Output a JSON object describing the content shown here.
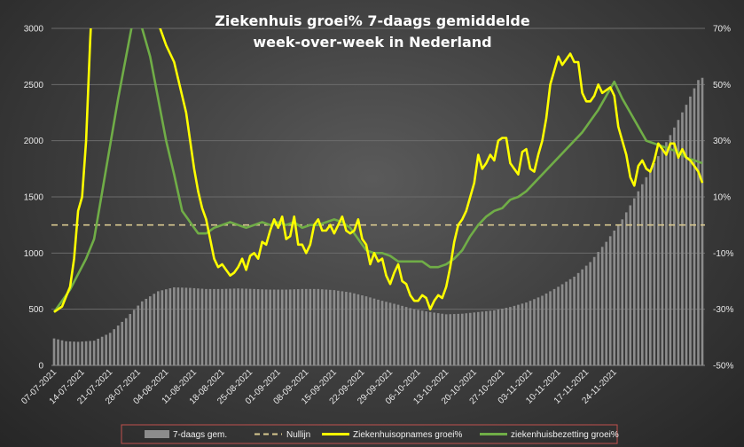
{
  "chart_data": {
    "type": "bar+line",
    "title_lines": [
      "Ziekenhuis groei% 7-daags gemiddelde",
      "week-over-week in Nederland"
    ],
    "x_tick_labels": [
      "07-07-2021",
      "14-07-2021",
      "21-07-2021",
      "28-07-2021",
      "04-08-2021",
      "11-08-2021",
      "18-08-2021",
      "25-08-2021",
      "01-09-2021",
      "08-09-2021",
      "15-09-2021",
      "22-09-2021",
      "29-09-2021",
      "06-10-2021",
      "13-10-2021",
      "20-10-2021",
      "27-10-2021",
      "03-11-2021",
      "10-11-2021",
      "17-11-2021",
      "24-11-2021"
    ],
    "y_left": {
      "min": 0,
      "max": 3000,
      "ticks": [
        "0",
        "500",
        "1000",
        "1500",
        "2000",
        "2500",
        "3000"
      ]
    },
    "y_right": {
      "min": -50,
      "max": 70,
      "ticks": [
        "-50%",
        "-30%",
        "-10%",
        "10%",
        "30%",
        "50%",
        "70%"
      ]
    },
    "reference_line": {
      "name": "Nullijn",
      "y_right": 0,
      "color": "#d8c890"
    },
    "series": [
      {
        "name": "7-daags gem.",
        "type": "bar",
        "axis": "left",
        "color": "#8c8c8c",
        "knots": [
          [
            0,
            240
          ],
          [
            3,
            215
          ],
          [
            6,
            210
          ],
          [
            10,
            220
          ],
          [
            14,
            290
          ],
          [
            18,
            420
          ],
          [
            22,
            570
          ],
          [
            26,
            660
          ],
          [
            30,
            695
          ],
          [
            34,
            690
          ],
          [
            38,
            680
          ],
          [
            42,
            680
          ],
          [
            46,
            685
          ],
          [
            50,
            680
          ],
          [
            54,
            675
          ],
          [
            58,
            675
          ],
          [
            62,
            680
          ],
          [
            66,
            680
          ],
          [
            70,
            670
          ],
          [
            74,
            650
          ],
          [
            78,
            615
          ],
          [
            82,
            575
          ],
          [
            86,
            540
          ],
          [
            90,
            500
          ],
          [
            94,
            475
          ],
          [
            98,
            455
          ],
          [
            102,
            460
          ],
          [
            106,
            475
          ],
          [
            110,
            490
          ],
          [
            114,
            520
          ],
          [
            118,
            560
          ],
          [
            122,
            620
          ],
          [
            126,
            700
          ],
          [
            130,
            790
          ],
          [
            134,
            920
          ],
          [
            138,
            1100
          ],
          [
            142,
            1300
          ],
          [
            146,
            1550
          ],
          [
            150,
            1800
          ],
          [
            154,
            2050
          ],
          [
            158,
            2320
          ],
          [
            161,
            2540
          ],
          [
            162,
            2560
          ]
        ]
      },
      {
        "name": "Ziekenhuisopnames groei%",
        "type": "line",
        "axis": "right",
        "color": "#ffff00",
        "knots": [
          [
            0,
            -31
          ],
          [
            2,
            -29
          ],
          [
            4,
            -22
          ],
          [
            5,
            -12
          ],
          [
            6,
            5
          ],
          [
            7,
            10
          ],
          [
            8,
            30
          ],
          [
            9,
            65
          ],
          [
            10,
            95
          ],
          [
            11,
            140
          ],
          [
            12,
            190
          ],
          [
            13,
            240
          ],
          [
            14,
            280
          ],
          [
            15,
            320
          ],
          [
            16,
            340
          ],
          [
            17,
            380
          ],
          [
            18,
            400
          ],
          [
            19,
            380
          ],
          [
            20,
            330
          ],
          [
            21,
            250
          ],
          [
            22,
            180
          ],
          [
            23,
            110
          ],
          [
            24,
            82
          ],
          [
            25,
            78
          ],
          [
            26,
            72
          ],
          [
            28,
            64
          ],
          [
            30,
            58
          ],
          [
            31,
            52
          ],
          [
            32,
            46
          ],
          [
            33,
            40
          ],
          [
            34,
            30
          ],
          [
            35,
            20
          ],
          [
            36,
            12
          ],
          [
            37,
            6
          ],
          [
            38,
            2
          ],
          [
            39,
            -5
          ],
          [
            40,
            -12
          ],
          [
            41,
            -15
          ],
          [
            42,
            -14
          ],
          [
            43,
            -16
          ],
          [
            44,
            -18
          ],
          [
            45,
            -17
          ],
          [
            46,
            -15
          ],
          [
            47,
            -12
          ],
          [
            48,
            -16
          ],
          [
            49,
            -11
          ],
          [
            50,
            -10
          ],
          [
            51,
            -12
          ],
          [
            52,
            -6
          ],
          [
            53,
            -7
          ],
          [
            54,
            -2
          ],
          [
            55,
            2
          ],
          [
            56,
            -1
          ],
          [
            57,
            3
          ],
          [
            58,
            -5
          ],
          [
            59,
            -4
          ],
          [
            60,
            3
          ],
          [
            61,
            -7
          ],
          [
            62,
            -7
          ],
          [
            63,
            -10
          ],
          [
            64,
            -7
          ],
          [
            65,
            0
          ],
          [
            66,
            2
          ],
          [
            67,
            -2
          ],
          [
            68,
            -2
          ],
          [
            69,
            0
          ],
          [
            70,
            -3
          ],
          [
            71,
            0
          ],
          [
            72,
            3
          ],
          [
            73,
            -2
          ],
          [
            74,
            -3
          ],
          [
            75,
            -2
          ],
          [
            76,
            2
          ],
          [
            77,
            -5
          ],
          [
            78,
            -7
          ],
          [
            79,
            -14
          ],
          [
            80,
            -10
          ],
          [
            81,
            -13
          ],
          [
            82,
            -12
          ],
          [
            83,
            -18
          ],
          [
            84,
            -21
          ],
          [
            85,
            -17
          ],
          [
            86,
            -14
          ],
          [
            87,
            -20
          ],
          [
            88,
            -21
          ],
          [
            89,
            -25
          ],
          [
            90,
            -27
          ],
          [
            91,
            -27
          ],
          [
            92,
            -25
          ],
          [
            93,
            -26
          ],
          [
            94,
            -30
          ],
          [
            95,
            -27
          ],
          [
            96,
            -25
          ],
          [
            97,
            -26
          ],
          [
            98,
            -22
          ],
          [
            99,
            -15
          ],
          [
            100,
            -6
          ],
          [
            101,
            0
          ],
          [
            102,
            2
          ],
          [
            103,
            5
          ],
          [
            104,
            10
          ],
          [
            105,
            15
          ],
          [
            106,
            25
          ],
          [
            107,
            20
          ],
          [
            108,
            22
          ],
          [
            109,
            25
          ],
          [
            110,
            23
          ],
          [
            111,
            30
          ],
          [
            112,
            31
          ],
          [
            113,
            31
          ],
          [
            114,
            22
          ],
          [
            115,
            20
          ],
          [
            116,
            18
          ],
          [
            117,
            26
          ],
          [
            118,
            27
          ],
          [
            119,
            20
          ],
          [
            120,
            19
          ],
          [
            121,
            25
          ],
          [
            122,
            30
          ],
          [
            123,
            38
          ],
          [
            124,
            50
          ],
          [
            125,
            55
          ],
          [
            126,
            60
          ],
          [
            127,
            57
          ],
          [
            128,
            59
          ],
          [
            129,
            61
          ],
          [
            130,
            58
          ],
          [
            131,
            58
          ],
          [
            132,
            47
          ],
          [
            133,
            44
          ],
          [
            134,
            44
          ],
          [
            135,
            46
          ],
          [
            136,
            50
          ],
          [
            137,
            47
          ],
          [
            138,
            48
          ],
          [
            139,
            49
          ],
          [
            140,
            46
          ],
          [
            141,
            35
          ],
          [
            142,
            30
          ],
          [
            143,
            25
          ],
          [
            144,
            17
          ],
          [
            145,
            14
          ],
          [
            146,
            21
          ],
          [
            147,
            23
          ],
          [
            148,
            20
          ],
          [
            149,
            19
          ],
          [
            150,
            23
          ],
          [
            151,
            29
          ],
          [
            152,
            27
          ],
          [
            153,
            25
          ],
          [
            154,
            29
          ],
          [
            155,
            29
          ],
          [
            156,
            24
          ],
          [
            157,
            27
          ],
          [
            158,
            24
          ],
          [
            159,
            23
          ],
          [
            160,
            21
          ],
          [
            161,
            19
          ],
          [
            162,
            15
          ]
        ]
      },
      {
        "name": "ziekenhuisbezetting groei%",
        "type": "line",
        "axis": "right",
        "color": "#70ad47",
        "knots": [
          [
            0,
            -31
          ],
          [
            4,
            -23
          ],
          [
            8,
            -12
          ],
          [
            10,
            -5
          ],
          [
            13,
            20
          ],
          [
            16,
            45
          ],
          [
            18,
            60
          ],
          [
            20,
            75
          ],
          [
            22,
            70
          ],
          [
            24,
            60
          ],
          [
            26,
            45
          ],
          [
            28,
            30
          ],
          [
            30,
            18
          ],
          [
            32,
            5
          ],
          [
            34,
            1
          ],
          [
            36,
            -3
          ],
          [
            38,
            -3
          ],
          [
            40,
            -1
          ],
          [
            42,
            0
          ],
          [
            44,
            1
          ],
          [
            46,
            0
          ],
          [
            48,
            -1
          ],
          [
            50,
            0
          ],
          [
            52,
            1
          ],
          [
            54,
            0
          ],
          [
            56,
            1
          ],
          [
            58,
            0
          ],
          [
            60,
            1
          ],
          [
            62,
            -1
          ],
          [
            64,
            0
          ],
          [
            66,
            0
          ],
          [
            68,
            1
          ],
          [
            70,
            2
          ],
          [
            72,
            1
          ],
          [
            74,
            -1
          ],
          [
            76,
            -5
          ],
          [
            78,
            -9
          ],
          [
            80,
            -10
          ],
          [
            82,
            -10
          ],
          [
            84,
            -11
          ],
          [
            86,
            -13
          ],
          [
            88,
            -13
          ],
          [
            90,
            -13
          ],
          [
            92,
            -13
          ],
          [
            94,
            -15
          ],
          [
            96,
            -15
          ],
          [
            98,
            -14
          ],
          [
            100,
            -12
          ],
          [
            102,
            -9
          ],
          [
            104,
            -4
          ],
          [
            106,
            0
          ],
          [
            108,
            3
          ],
          [
            110,
            5
          ],
          [
            112,
            6
          ],
          [
            114,
            9
          ],
          [
            116,
            10
          ],
          [
            118,
            12
          ],
          [
            120,
            15
          ],
          [
            122,
            18
          ],
          [
            124,
            21
          ],
          [
            126,
            24
          ],
          [
            128,
            27
          ],
          [
            130,
            30
          ],
          [
            132,
            33
          ],
          [
            134,
            37
          ],
          [
            136,
            41
          ],
          [
            138,
            46
          ],
          [
            140,
            51
          ],
          [
            142,
            45
          ],
          [
            144,
            40
          ],
          [
            146,
            35
          ],
          [
            148,
            30
          ],
          [
            150,
            29
          ],
          [
            152,
            28
          ],
          [
            154,
            27
          ],
          [
            156,
            26
          ],
          [
            158,
            24
          ],
          [
            160,
            23
          ],
          [
            162,
            22
          ]
        ]
      }
    ],
    "legend": {
      "position": "bottom",
      "items": [
        "7-daags gem.",
        "Nullijn",
        "Ziekenhuisopnames groei%",
        "ziekenhuisbezetting groei%"
      ]
    },
    "n_days": 163
  }
}
